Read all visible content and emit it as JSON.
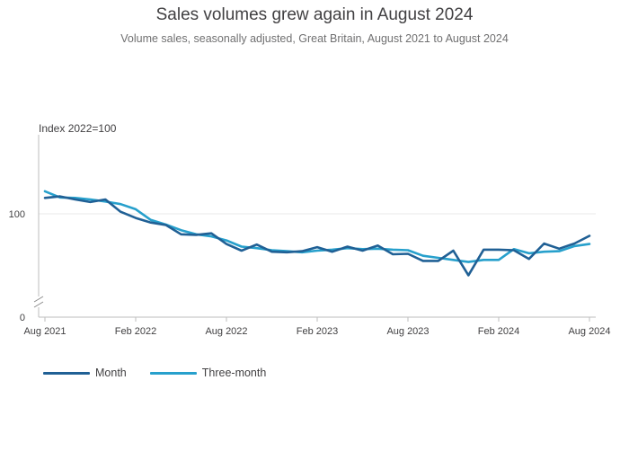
{
  "title": "Sales volumes grew again in August 2024",
  "subtitle": "Volume sales, seasonally adjusted, Great Britain, August 2021 to August 2024",
  "colors": {
    "month": "#206095",
    "three_month": "#27a0cc",
    "axis": "#bebebe",
    "grid": "#e8e8e8",
    "text": "#414042"
  },
  "chart_data": {
    "type": "line",
    "title": "Sales volumes grew again in August 2024",
    "ylabel": "Index 2022=100",
    "xlabel": "",
    "ylim": [
      0,
      145
    ],
    "axis_break": true,
    "grid": "horizontal at 100",
    "legend_position": "bottom-left",
    "y_ticks": [
      "0",
      "100"
    ],
    "x_ticks": [
      "Aug 2021",
      "Feb 2022",
      "Aug 2022",
      "Feb 2023",
      "Aug 2023",
      "Feb 2024",
      "Aug 2024"
    ],
    "x_tick_indices": [
      0,
      6,
      12,
      18,
      24,
      30,
      36
    ],
    "series": [
      {
        "name": "Month",
        "values": [
          115.5,
          117,
          114,
          111.5,
          114,
          102,
          96,
          91.5,
          89,
          80,
          79.5,
          81,
          70.5,
          64,
          70,
          63,
          62.5,
          63.5,
          67.5,
          63,
          68,
          64,
          69,
          60.5,
          61,
          54,
          54,
          64,
          40,
          65,
          65,
          64.5,
          56,
          71,
          66,
          71,
          78.5
        ]
      },
      {
        "name": "Three-month",
        "values": [
          122,
          116,
          115.5,
          114,
          112,
          109.5,
          104.5,
          94,
          89.5,
          84,
          80,
          78,
          74,
          68,
          66.5,
          64.5,
          63.5,
          62.5,
          64,
          65,
          66.5,
          65.5,
          66,
          65,
          64.5,
          59,
          57,
          55,
          53,
          55,
          55,
          65.5,
          61.5,
          63,
          63.5,
          68.5,
          70.5
        ]
      }
    ]
  },
  "legend": {
    "month": "Month",
    "three_month": "Three-month"
  }
}
